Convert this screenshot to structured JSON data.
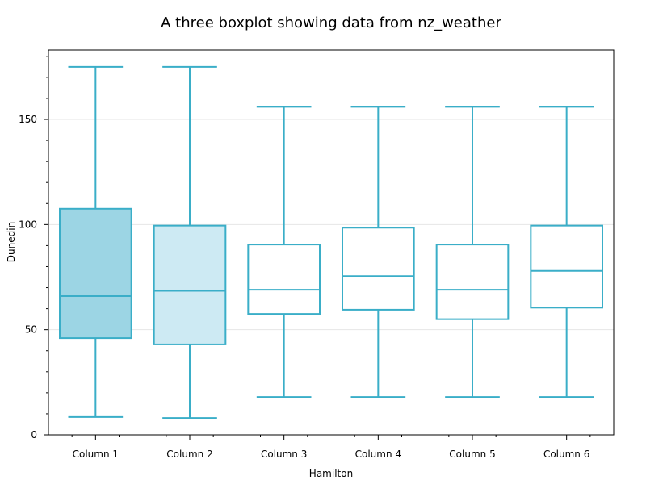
{
  "chart_data": {
    "type": "boxplot",
    "title": "A three boxplot showing data from nz_weather",
    "xlabel": "Hamilton",
    "ylabel": "Dunedin",
    "ylim": [
      0,
      183
    ],
    "yticks": [
      0,
      50,
      100,
      150
    ],
    "grid": "horizontal",
    "categories": [
      "Column 1",
      "Column 2",
      "Column 3",
      "Column 4",
      "Column 5",
      "Column 6"
    ],
    "boxes": [
      {
        "label": "Column 1",
        "whisker_low": 8.5,
        "q1": 46,
        "median": 66,
        "q3": 107.5,
        "whisker_high": 175,
        "fill": "#9cd5e4"
      },
      {
        "label": "Column 2",
        "whisker_low": 8,
        "q1": 43,
        "median": 68.5,
        "q3": 99.5,
        "whisker_high": 175,
        "fill": "#cdeaf3"
      },
      {
        "label": "Column 3",
        "whisker_low": 18,
        "q1": 57.5,
        "median": 69,
        "q3": 90.5,
        "whisker_high": 156,
        "fill": "#ffffff"
      },
      {
        "label": "Column 4",
        "whisker_low": 18,
        "q1": 59.5,
        "median": 75.5,
        "q3": 98.5,
        "whisker_high": 156,
        "fill": "#ffffff"
      },
      {
        "label": "Column 5",
        "whisker_low": 18,
        "q1": 55,
        "median": 69,
        "q3": 90.5,
        "whisker_high": 156,
        "fill": "#ffffff"
      },
      {
        "label": "Column 6",
        "whisker_low": 18,
        "q1": 60.5,
        "median": 78,
        "q3": 99.5,
        "whisker_high": 156,
        "fill": "#ffffff"
      }
    ],
    "colors": {
      "stroke": "#3aaec8",
      "grid": "#e6e6e6",
      "axis": "#000000"
    }
  }
}
